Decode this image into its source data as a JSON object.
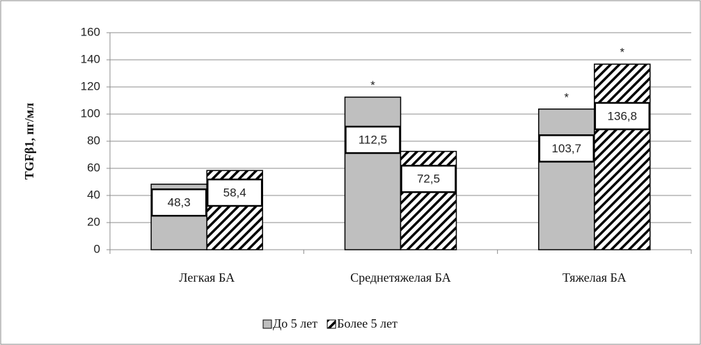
{
  "chart_data": {
    "type": "bar",
    "y_label": "TGFβ1, пг/мл",
    "categories": [
      "Легкая БА",
      "Среднетяжелая БА",
      "Тяжелая БА"
    ],
    "series": [
      {
        "name": "До 5 лет",
        "color": "#bfbfbf",
        "values": [
          48.3,
          112.5,
          103.7
        ],
        "value_labels": [
          "48,3",
          "112,5",
          "103,7"
        ],
        "markers": [
          null,
          "*",
          "*"
        ]
      },
      {
        "name": "Более 5 лет",
        "color": "hatch",
        "values": [
          58.4,
          72.5,
          136.8
        ],
        "value_labels": [
          "58,4",
          "72,5",
          "136,8"
        ],
        "markers": [
          null,
          null,
          "*"
        ]
      }
    ],
    "ylim": [
      0,
      160
    ],
    "yticks": [
      0,
      20,
      40,
      60,
      80,
      100,
      120,
      140,
      160
    ],
    "grid": true,
    "legend": "bottom"
  }
}
